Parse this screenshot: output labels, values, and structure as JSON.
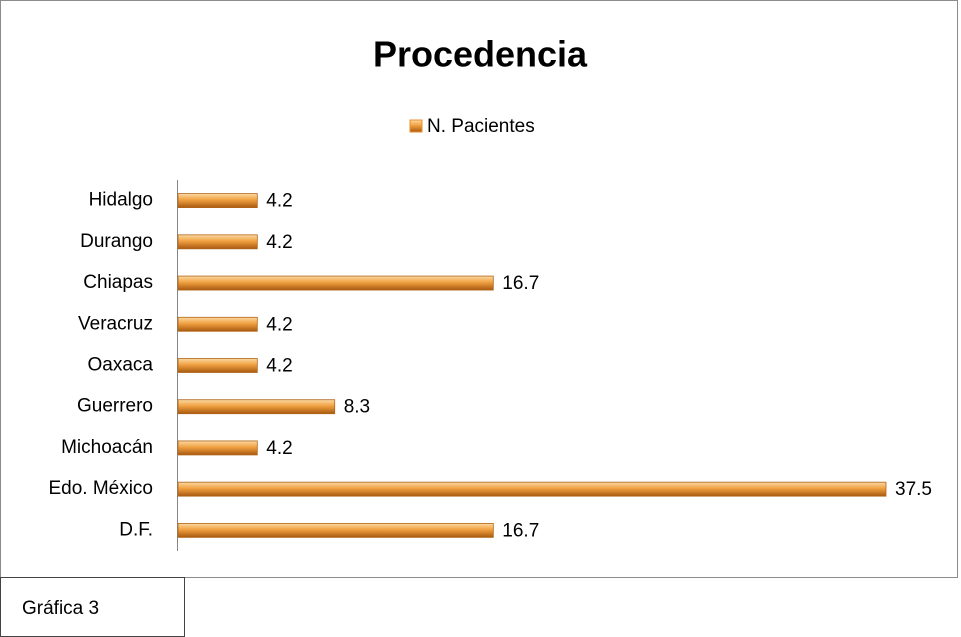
{
  "chart_data": {
    "type": "bar",
    "orientation": "horizontal",
    "title": "Procedencia",
    "categories": [
      "Hidalgo",
      "Durango",
      "Chiapas",
      "Veracruz",
      "Oaxaca",
      "Guerrero",
      "Michoacán",
      "Edo. México",
      "D.F."
    ],
    "series": [
      {
        "name": "N. Pacientes",
        "color": "#e8902a",
        "values": [
          4.2,
          4.2,
          16.7,
          4.2,
          4.2,
          8.3,
          4.2,
          37.5,
          16.7
        ]
      }
    ],
    "legend": "top"
  },
  "caption": "Gráfica 3"
}
